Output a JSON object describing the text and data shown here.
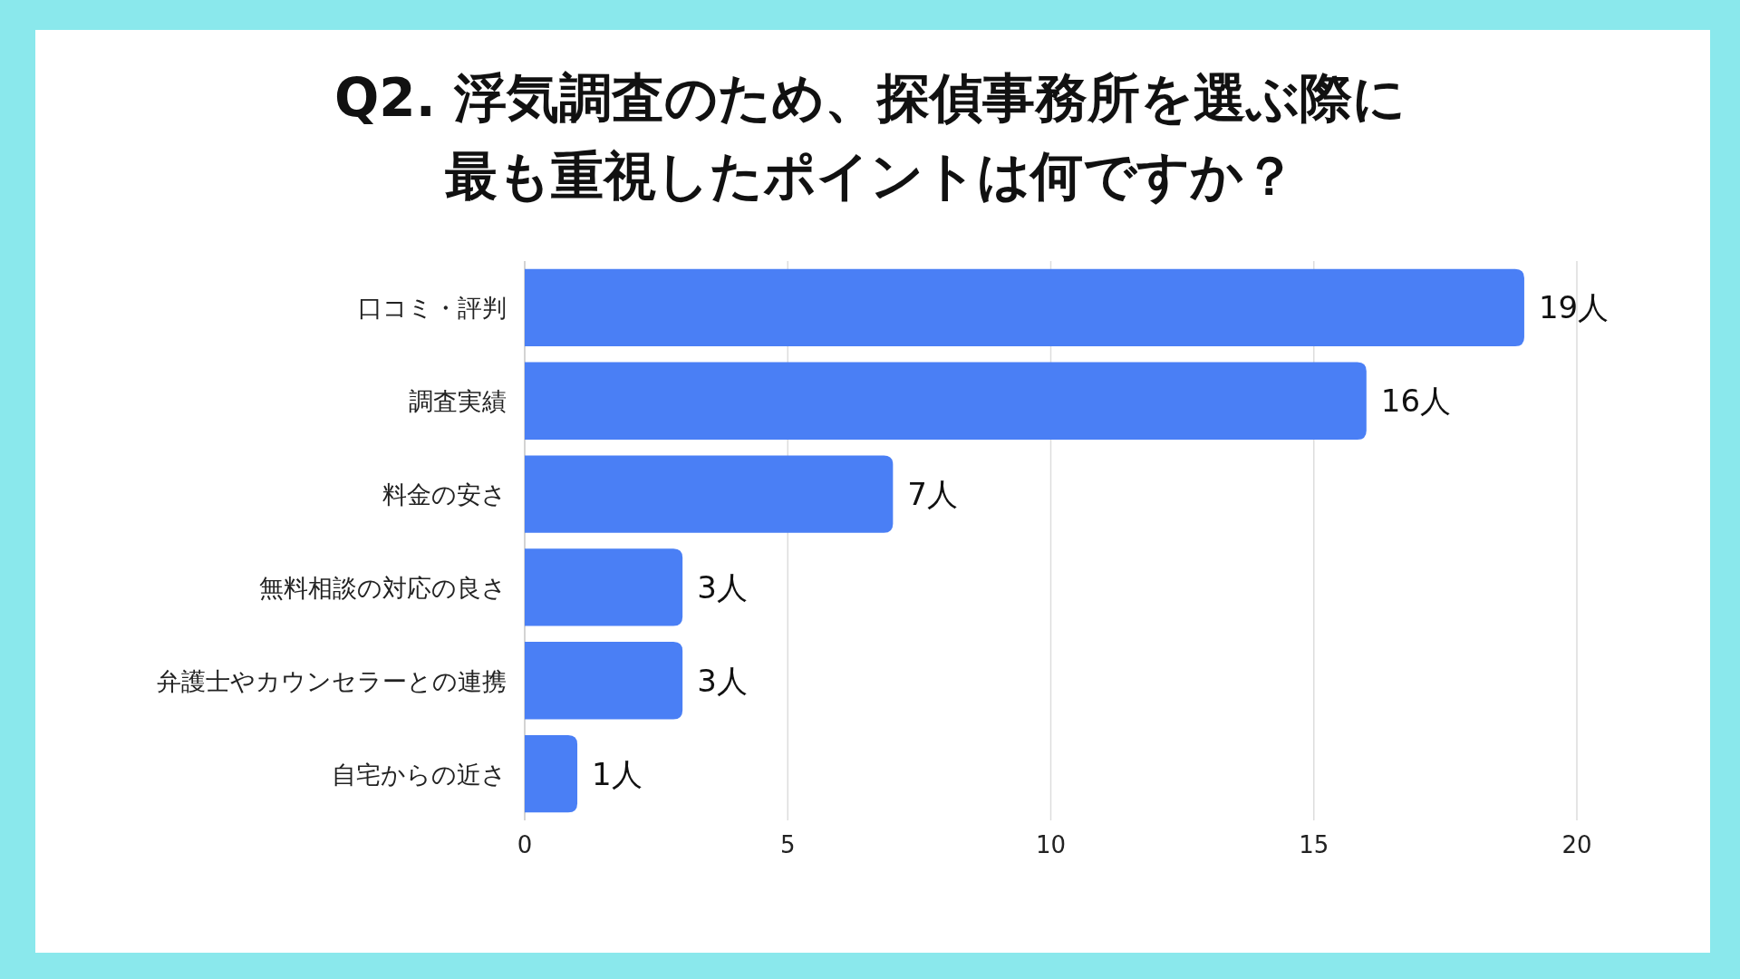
{
  "chart_data": {
    "type": "bar",
    "orientation": "horizontal",
    "title": [
      "Q2. 浮気調査のため、探偵事務所を選ぶ際に",
      "最も重視したポイントは何ですか？"
    ],
    "categories": [
      "口コミ・評判",
      "調査実績",
      "料金の安さ",
      "無料相談の対応の良さ",
      "弁護士やカウンセラーとの連携",
      "自宅からの近さ"
    ],
    "values": [
      19,
      16,
      7,
      3,
      3,
      1
    ],
    "value_labels": [
      "19人",
      "16人",
      "7人",
      "3人",
      "3人",
      "1人"
    ],
    "color": "#4a7ff5",
    "xlim": [
      0,
      20
    ],
    "xticks": [
      0,
      5,
      10,
      15,
      20
    ],
    "grid": "x"
  }
}
